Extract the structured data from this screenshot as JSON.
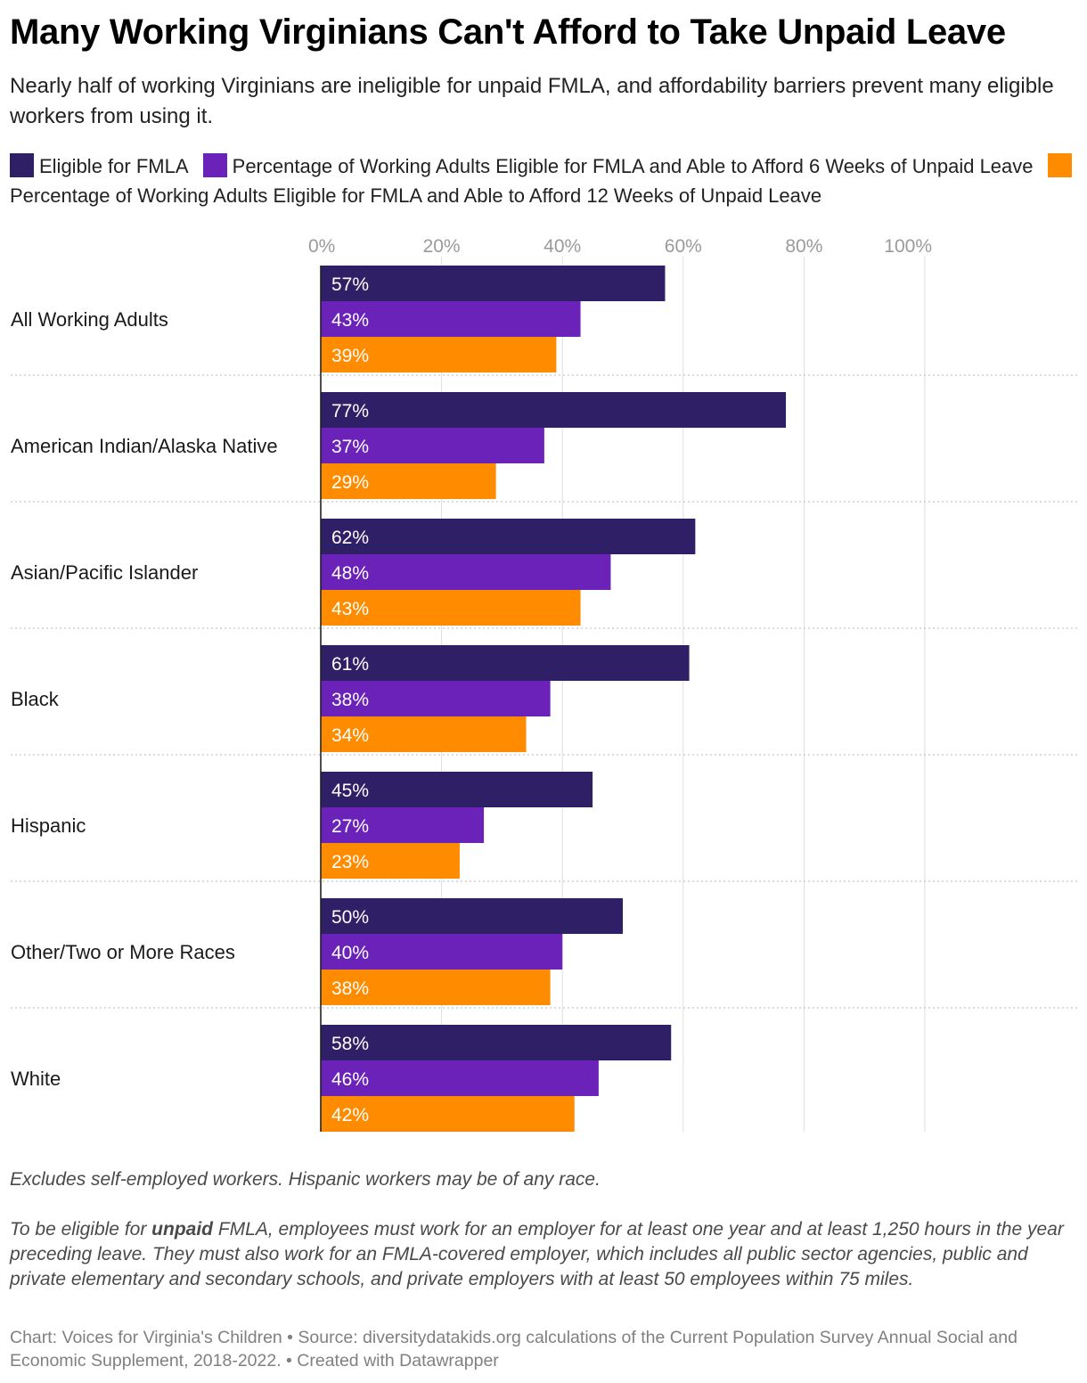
{
  "title": "Many Working Virginians Can't Afford to Take Unpaid Leave",
  "subtitle": "Nearly half of working Virginians are ineligible for unpaid FMLA, and affordability barriers prevent many eligible workers from using it.",
  "notes": {
    "line1": "Excludes self-employed workers. Hispanic workers may be of any race.",
    "line2_before": "To be eligible for ",
    "line2_bold": "unpaid",
    "line2_after": " FMLA, employees must work for an employer for at least one year and at least 1,250 hours in the year preceding leave. They must also work for an FMLA-covered employer, which includes all public sector agencies, public and private elementary and secondary schools, and private employers with at least 50 employees within 75 miles."
  },
  "credit": "Chart: Voices for Virginia's Children • Source: diversitydatakids.org calculations of the Current Population Survey Annual Social and Economic Supplement, 2018-2022. • Created with Datawrapper",
  "chart_data": {
    "type": "bar",
    "orientation": "horizontal",
    "categories": [
      "All Working Adults",
      "American Indian/Alaska Native",
      "Asian/Pacific Islander",
      "Black",
      "Hispanic",
      "Other/Two or More Races",
      "White"
    ],
    "series": [
      {
        "name": "Eligible for FMLA",
        "color": "#2e1f66",
        "values": [
          57,
          77,
          62,
          61,
          45,
          50,
          58
        ]
      },
      {
        "name": "Percentage of Working Adults Eligible for FMLA and Able to Afford 6 Weeks of Unpaid Leave",
        "color": "#6a22b8",
        "values": [
          43,
          37,
          48,
          38,
          27,
          40,
          46
        ]
      },
      {
        "name": "Percentage of Working Adults Eligible for FMLA and Able to Afford 12 Weeks of Unpaid Leave",
        "color": "#ff8c00",
        "values": [
          39,
          29,
          43,
          34,
          23,
          38,
          42
        ]
      }
    ],
    "xlim": [
      0,
      100
    ],
    "xticks": [
      0,
      20,
      40,
      60,
      80,
      100
    ],
    "xtick_labels": [
      "0%",
      "20%",
      "40%",
      "60%",
      "80%",
      "100%"
    ],
    "value_suffix": "%",
    "grid": true,
    "legend_position": "top"
  }
}
